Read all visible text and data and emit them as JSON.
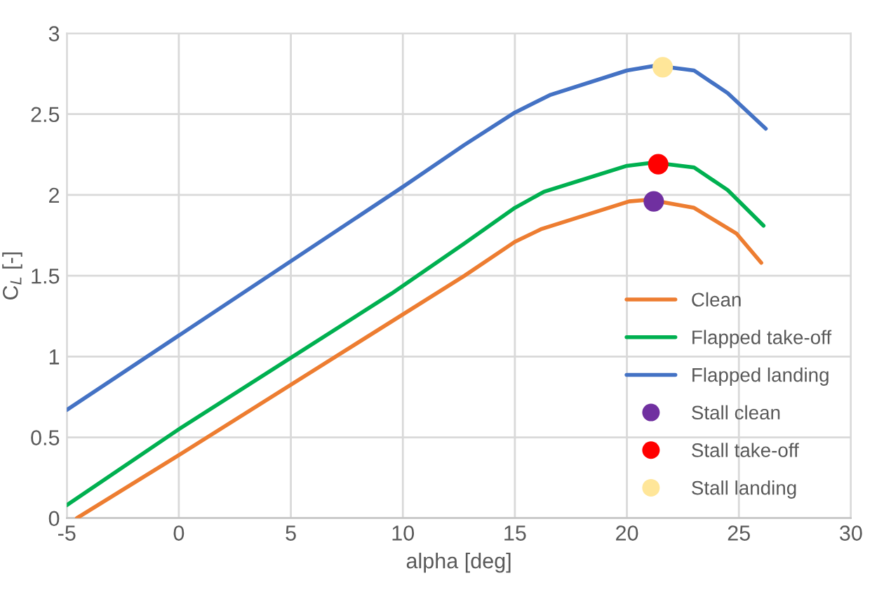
{
  "chart_data": {
    "type": "line",
    "xlabel": "alpha [deg]",
    "ylabel": "C$_{L}$ [-]",
    "xlim": [
      -5,
      30
    ],
    "xticks": [
      -5,
      0,
      5,
      10,
      15,
      20,
      25,
      30
    ],
    "ylim": [
      0,
      3
    ],
    "yticks": [
      0,
      0.5,
      1,
      1.5,
      2,
      2.5,
      3
    ],
    "grid": true,
    "legend": "bottom right",
    "marker": "none",
    "line_style": "solid",
    "series": [
      {
        "name": "Clean",
        "color": "#ed7d31",
        "x": [
          -4.55,
          0,
          12.75,
          15,
          16.2,
          20.1,
          21,
          23,
          24.9,
          26
        ],
        "values": [
          0,
          0.39,
          1.5,
          1.71,
          1.79,
          1.96,
          1.97,
          1.92,
          1.76,
          1.58
        ]
      },
      {
        "name": "Flapped take-off",
        "color": "#00b050",
        "x": [
          -5,
          0,
          9.5,
          12.75,
          15,
          16.3,
          20,
          21.2,
          23,
          24.5,
          26.1
        ],
        "values": [
          0.08,
          0.55,
          1.39,
          1.7,
          1.92,
          2.02,
          2.18,
          2.2,
          2.17,
          2.03,
          1.81
        ]
      },
      {
        "name": "Flapped landing",
        "color": "#4472c4",
        "x": [
          -5,
          10,
          12.75,
          15,
          16.6,
          20,
          21.3,
          23,
          24.5,
          26.2
        ],
        "values": [
          0.67,
          2.05,
          2.31,
          2.51,
          2.62,
          2.77,
          2.8,
          2.77,
          2.63,
          2.41
        ]
      },
      {
        "name": "Stall clean",
        "type": "scatter",
        "color": "#7030a0",
        "marker": "circle",
        "x": [
          21.2
        ],
        "values": [
          1.96
        ]
      },
      {
        "name": "Stall take-off",
        "type": "scatter",
        "color": "#ff0000",
        "marker": "circle",
        "x": [
          21.4
        ],
        "values": [
          2.19
        ]
      },
      {
        "name": "Stall landing",
        "type": "scatter",
        "color": "#ffe699",
        "marker": "circle",
        "x": [
          21.6
        ],
        "values": [
          2.79
        ]
      }
    ]
  }
}
